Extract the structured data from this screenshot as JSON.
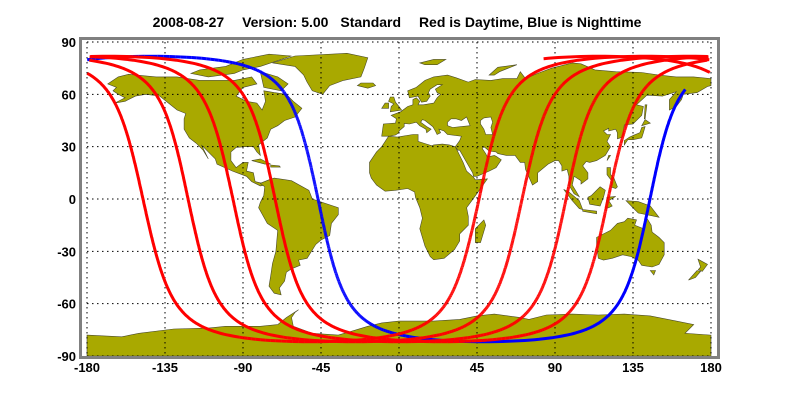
{
  "title": {
    "date": "2008-08-27",
    "version": "Version: 5.00",
    "product": "Standard",
    "legend_text": "Red is Daytime, Blue is Nighttime"
  },
  "axes": {
    "lon_ticks": [
      "-180",
      "-135",
      "-90",
      "-45",
      "0",
      "45",
      "90",
      "135",
      "180"
    ],
    "lat_ticks": [
      "90",
      "60",
      "30",
      "0",
      "-30",
      "-60",
      "-90"
    ],
    "lon_range": [
      -180,
      180
    ],
    "lat_range": [
      -90,
      90
    ],
    "grid": true
  },
  "colors": {
    "day": "#ff0000",
    "night": "#0000ff",
    "land": "#a9a900",
    "frame": "#808080"
  },
  "orbit_tracks": {
    "ascending_equator_crossings_lon": [
      -46.7,
      -71.5,
      -95.8,
      -121.7,
      -147.7
    ],
    "descending_equator_crossings_lon": [
      144.8,
      120.6,
      96.4,
      71.0,
      46.2
    ]
  }
}
